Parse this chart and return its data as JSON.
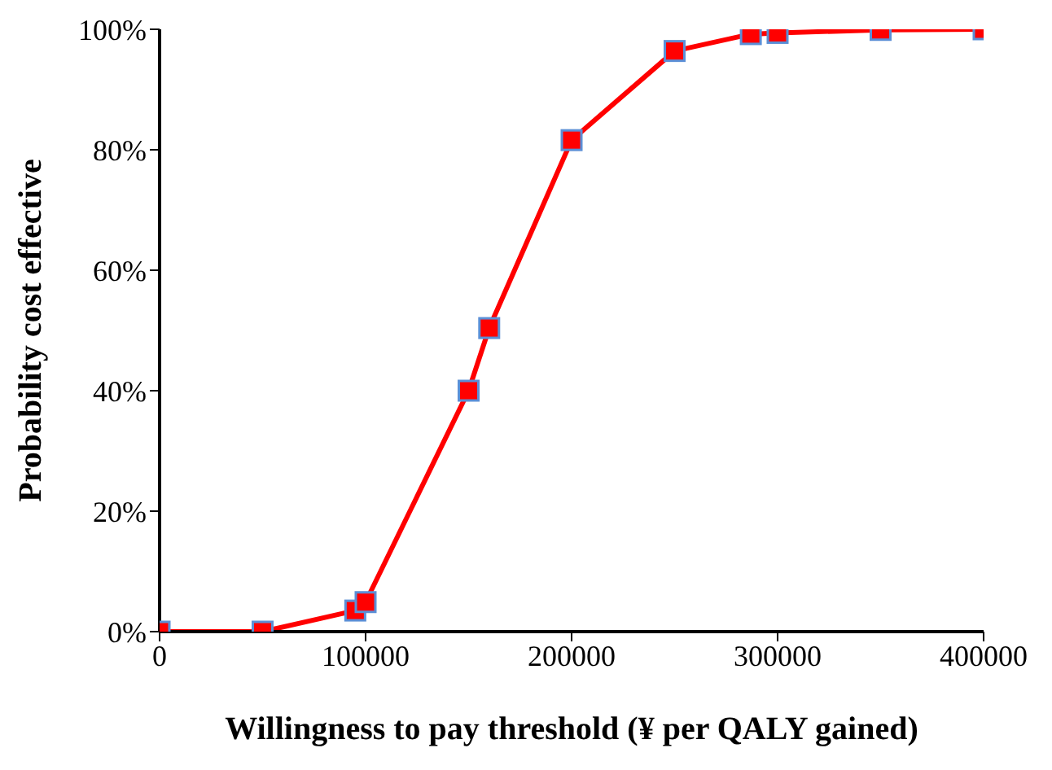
{
  "chart_data": {
    "type": "line",
    "xlabel": "Willingness to pay threshold (¥ per QALY gained)",
    "ylabel": "Probability cost effective",
    "x": [
      0,
      50000,
      95000,
      100000,
      150000,
      160000,
      200000,
      250000,
      287000,
      300000,
      350000,
      400000
    ],
    "series": [
      {
        "color": "#ff0000",
        "values": [
          0,
          0,
          3.5,
          4.9,
          40,
          50.4,
          81.6,
          96.4,
          99.2,
          99.4,
          99.9,
          100
        ]
      }
    ],
    "xlim": [
      0,
      400000
    ],
    "xticks": [
      0,
      100000,
      200000,
      300000,
      400000
    ],
    "ylim": [
      0,
      100
    ],
    "yticks": [
      {
        "value": 0,
        "label": "0%"
      },
      {
        "value": 20,
        "label": "20%"
      },
      {
        "value": 40,
        "label": "40%"
      },
      {
        "value": 60,
        "label": "60%"
      },
      {
        "value": 80,
        "label": "80%"
      },
      {
        "value": 100,
        "label": "100%"
      }
    ],
    "marker": "square",
    "line_style": "solid",
    "grid": false,
    "legend": false
  }
}
